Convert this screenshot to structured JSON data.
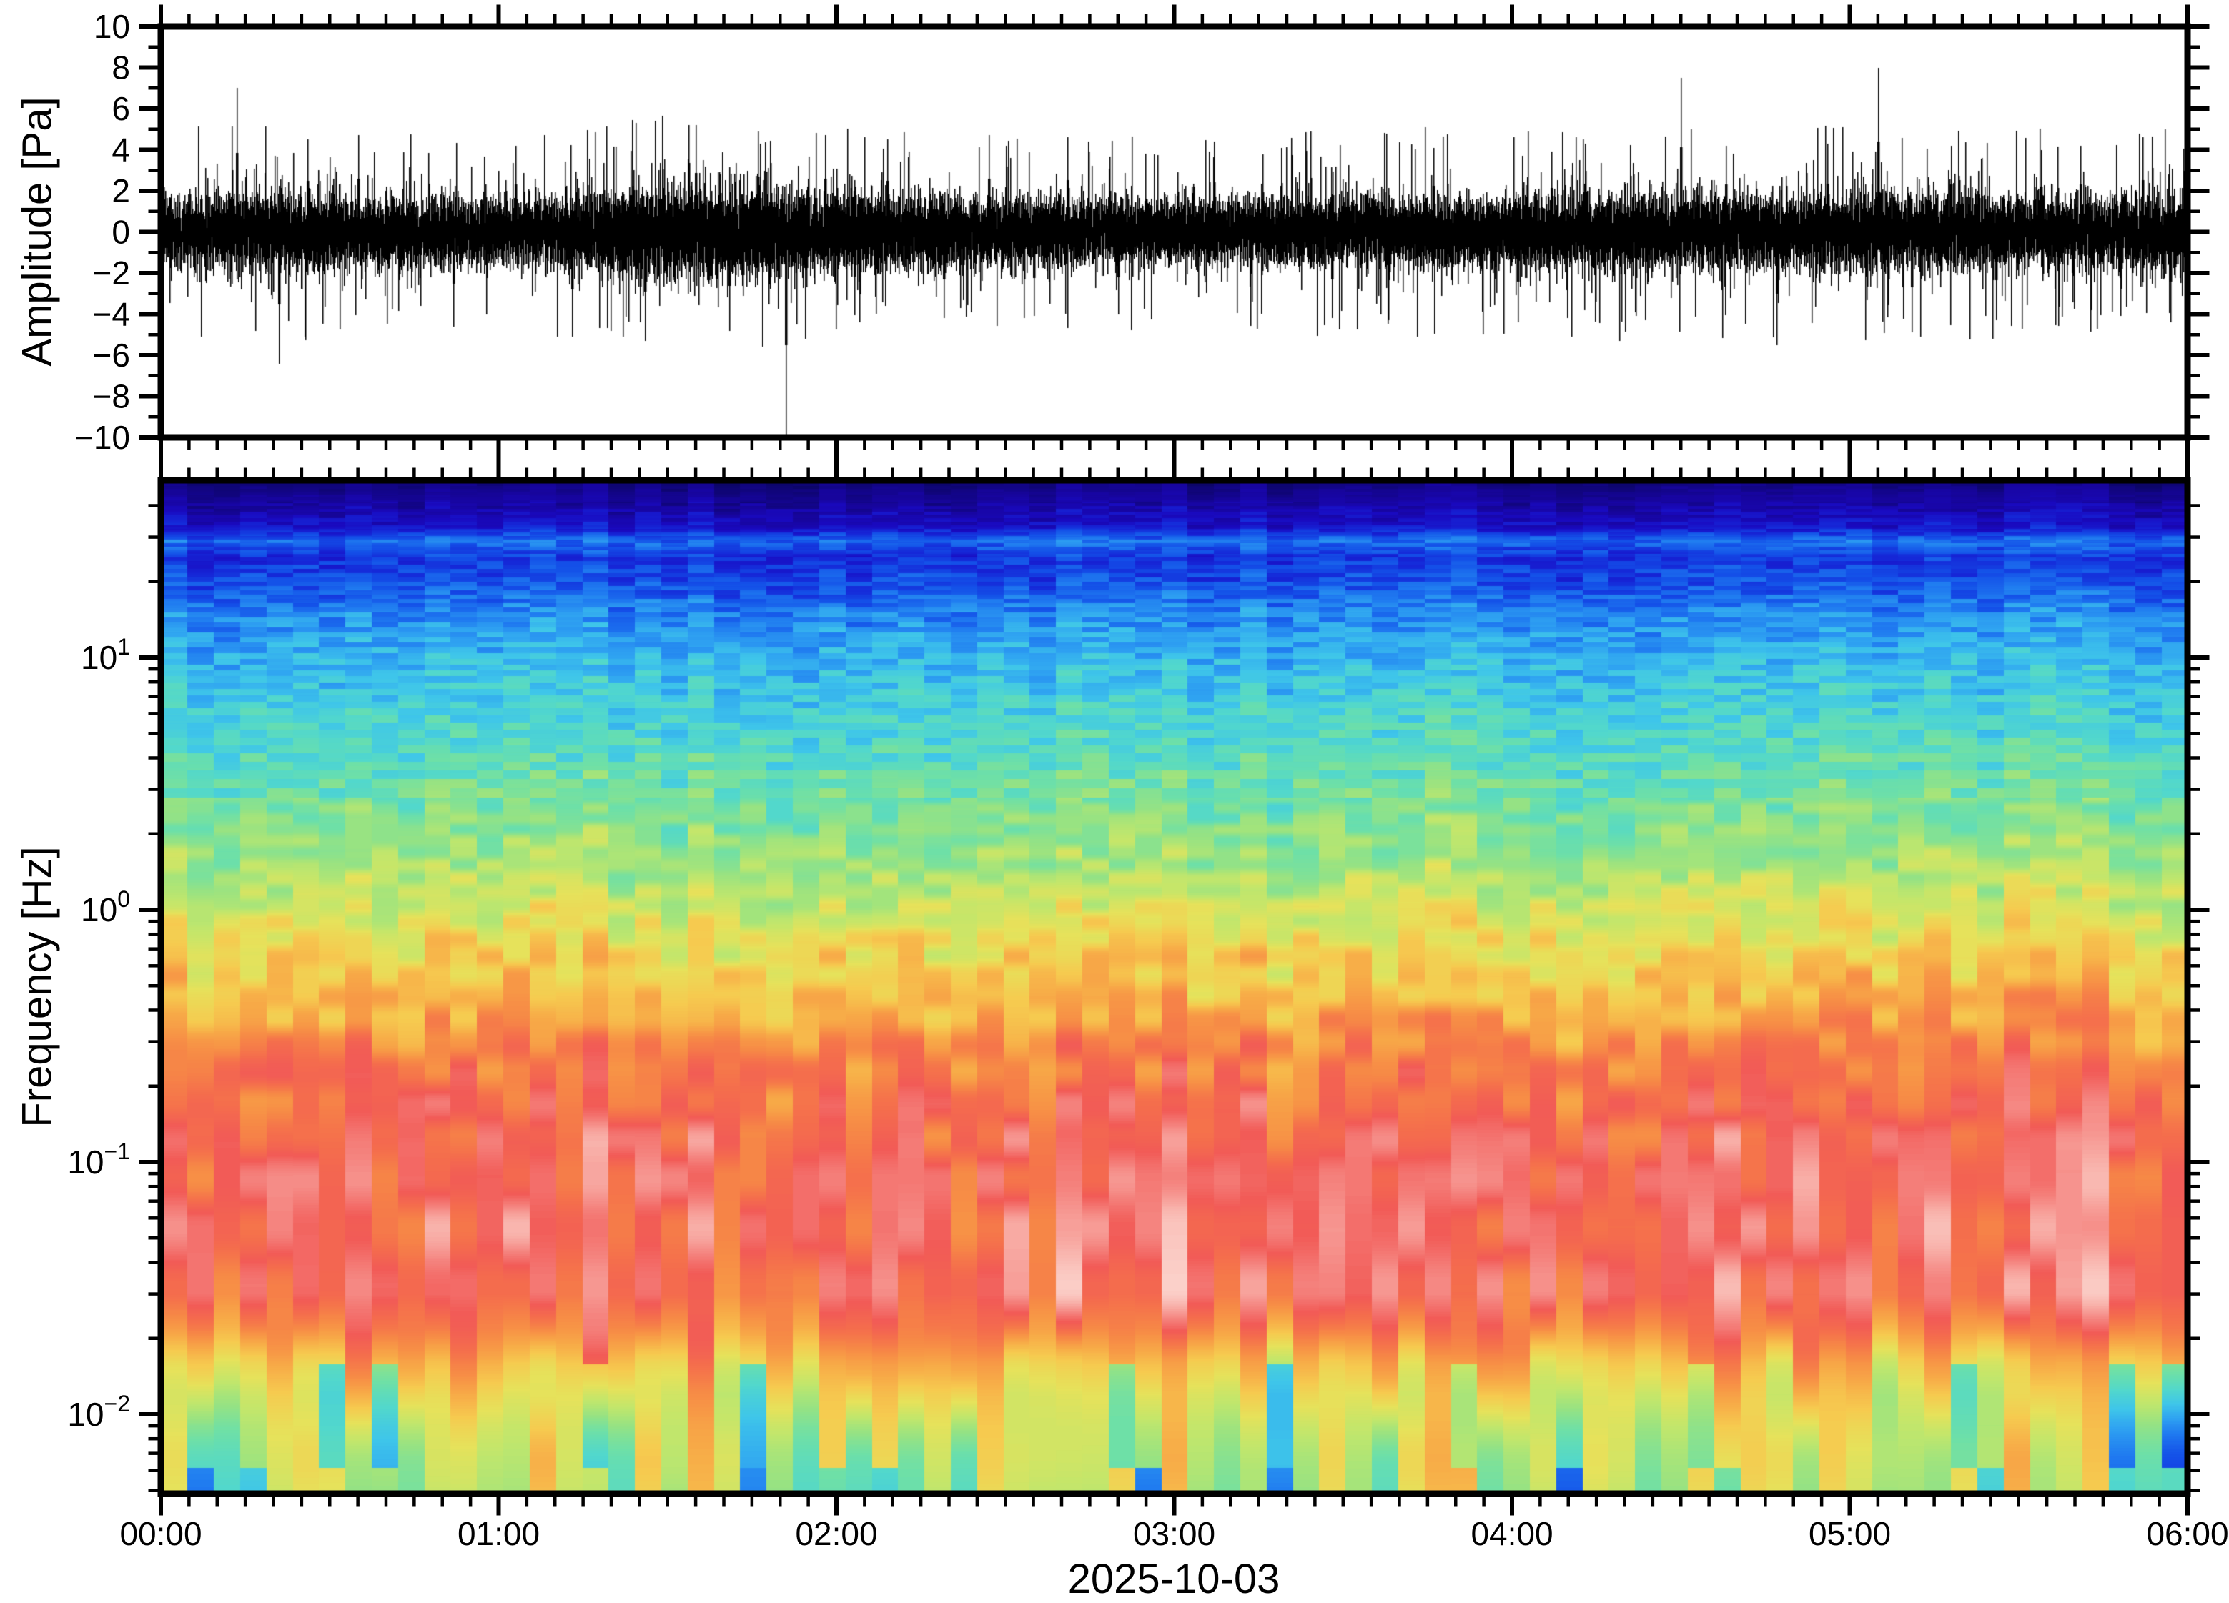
{
  "figure": {
    "background": "#ffffff",
    "ink": "#000000",
    "kind": "infrasound waveform and spectrogram"
  },
  "top_panel": {
    "ylabel": "Amplitude [Pa]",
    "ylim": [
      -10,
      10
    ],
    "major_tick_step": 2,
    "minor_tick_step": 1,
    "tick_labels": [
      "10",
      "8",
      "6",
      "4",
      "2",
      "0",
      "−2",
      "−4",
      "−6",
      "−8",
      "−10"
    ]
  },
  "bottom_panel": {
    "ylabel": "Frequency [Hz]",
    "yscale": "log",
    "ylim_hz": [
      0.005,
      50
    ],
    "decade_ticks": [
      {
        "base": "10",
        "exp": "1",
        "hz": 10
      },
      {
        "base": "10",
        "exp": "0",
        "hz": 1
      },
      {
        "base": "10",
        "exp": "−1",
        "hz": 0.1
      },
      {
        "base": "10",
        "exp": "−2",
        "hz": 0.01
      }
    ]
  },
  "x_axis": {
    "label": "2025-10-03",
    "start_label": "00:00",
    "end_label": "06:00",
    "major_ticks": [
      {
        "minutes": 0,
        "label": "00:00"
      },
      {
        "minutes": 60,
        "label": "01:00"
      },
      {
        "minutes": 120,
        "label": "02:00"
      },
      {
        "minutes": 180,
        "label": "03:00"
      },
      {
        "minutes": 240,
        "label": "04:00"
      },
      {
        "minutes": 300,
        "label": "05:00"
      },
      {
        "minutes": 360,
        "label": "06:00"
      }
    ],
    "minor_tick_minutes": 5,
    "span_minutes": 360
  },
  "chart_data": [
    {
      "type": "line",
      "name": "infrasound-waveform",
      "title": "",
      "xlabel": "2025-10-03",
      "ylabel": "Amplitude [Pa]",
      "units": "Pa",
      "x_span_minutes": 360,
      "ylim": [
        -10,
        10
      ],
      "color": "#000000",
      "noise": {
        "base_sigma_pa": 0.8,
        "samples_per_column": 12,
        "tail_probability": 0.11,
        "tail_amp_pa": [
          2.2,
          4.6
        ],
        "envelope_sigma_pa": [
          [
            0,
            0.82
          ],
          [
            15,
            0.95
          ],
          [
            35,
            0.9
          ],
          [
            55,
            0.8
          ],
          [
            70,
            0.88
          ],
          [
            85,
            1.05
          ],
          [
            95,
            1.18
          ],
          [
            105,
            1.12
          ],
          [
            115,
            0.97
          ],
          [
            130,
            0.9
          ],
          [
            150,
            0.83
          ],
          [
            175,
            0.8
          ],
          [
            200,
            0.79
          ],
          [
            225,
            0.83
          ],
          [
            250,
            0.86
          ],
          [
            270,
            0.92
          ],
          [
            290,
            0.86
          ],
          [
            310,
            0.92
          ],
          [
            330,
            0.84
          ],
          [
            345,
            0.86
          ],
          [
            360,
            0.92
          ]
        ]
      },
      "spikes_pa": [
        [
          13.5,
          7.0
        ],
        [
          21,
          -6.4
        ],
        [
          26,
          4.5
        ],
        [
          35,
          4.7
        ],
        [
          52,
          -4.6
        ],
        [
          63,
          4.2
        ],
        [
          73,
          -5.1
        ],
        [
          86,
          -5.3
        ],
        [
          95,
          5.2
        ],
        [
          101,
          -4.8
        ],
        [
          106,
          4.9
        ],
        [
          111,
          -10.0
        ],
        [
          118,
          4.7
        ],
        [
          124,
          -4.4
        ],
        [
          129,
          4.5
        ],
        [
          139,
          -4.2
        ],
        [
          147,
          4.7
        ],
        [
          155,
          -4.1
        ],
        [
          161,
          4.6
        ],
        [
          170,
          -4.0
        ],
        [
          187,
          4.4
        ],
        [
          199,
          4.1
        ],
        [
          208,
          -4.2
        ],
        [
          218,
          -4.3
        ],
        [
          226,
          4.1
        ],
        [
          241,
          -4.4
        ],
        [
          247,
          3.9
        ],
        [
          253,
          4.3
        ],
        [
          262,
          -4.1
        ],
        [
          270,
          7.5
        ],
        [
          278,
          4.2
        ],
        [
          287,
          -5.5
        ],
        [
          296,
          4.3
        ],
        [
          305,
          8.0
        ],
        [
          311,
          -4.9
        ],
        [
          318,
          4.2
        ],
        [
          326,
          -4.3
        ],
        [
          334,
          4.0
        ],
        [
          341,
          4.2
        ],
        [
          348,
          -4.1
        ],
        [
          352,
          4.6
        ],
        [
          357,
          -4.4
        ],
        [
          359.5,
          4.8
        ]
      ],
      "clip_pa": 10
    },
    {
      "type": "heatmap",
      "name": "spectrogram",
      "title": "",
      "xlabel": "2025-10-03",
      "ylabel": "Frequency [Hz]",
      "yscale": "log",
      "ylim_hz": [
        0.005,
        50
      ],
      "x_span_minutes": 360,
      "time_bins": 77,
      "legend": "none",
      "power_profile_hz_to_level": [
        [
          50,
          0.02
        ],
        [
          46,
          0.04
        ],
        [
          40,
          0.07
        ],
        [
          33,
          0.12
        ],
        [
          29,
          0.24
        ],
        [
          25,
          0.17
        ],
        [
          20,
          0.2
        ],
        [
          15,
          0.27
        ],
        [
          10,
          0.33
        ],
        [
          7,
          0.37
        ],
        [
          5,
          0.4
        ],
        [
          3,
          0.45
        ],
        [
          2,
          0.49
        ],
        [
          1.5,
          0.52
        ],
        [
          1,
          0.58
        ],
        [
          0.7,
          0.63
        ],
        [
          0.5,
          0.67
        ],
        [
          0.35,
          0.72
        ],
        [
          0.25,
          0.78
        ],
        [
          0.18,
          0.81
        ],
        [
          0.12,
          0.85
        ],
        [
          0.08,
          0.86
        ],
        [
          0.05,
          0.86
        ],
        [
          0.03,
          0.85
        ],
        [
          0.022,
          0.78
        ],
        [
          0.016,
          0.68
        ],
        [
          0.012,
          0.62
        ],
        [
          0.009,
          0.58
        ],
        [
          0.007,
          0.56
        ],
        [
          0.005,
          0.54
        ]
      ],
      "noise_level_hz": [
        [
          50,
          0.03
        ],
        [
          16,
          0.05
        ],
        [
          3,
          0.055
        ],
        [
          1,
          0.06
        ],
        [
          0.2,
          0.075
        ],
        [
          0.06,
          0.085
        ],
        [
          0.016,
          0.1
        ],
        [
          0.005,
          0.11
        ]
      ],
      "column_contrast_hz": [
        [
          50,
          0.5
        ],
        [
          10,
          0.5
        ],
        [
          1,
          0.7
        ],
        [
          0.1,
          0.9
        ],
        [
          0.016,
          1.2
        ],
        [
          0.005,
          1.3
        ]
      ],
      "colormap": [
        [
          0.0,
          "#0c0566"
        ],
        [
          0.05,
          "#17059c"
        ],
        [
          0.1,
          "#1a0ac0"
        ],
        [
          0.15,
          "#1627d8"
        ],
        [
          0.2,
          "#144fe8"
        ],
        [
          0.25,
          "#1f78f0"
        ],
        [
          0.3,
          "#2fa2f2"
        ],
        [
          0.35,
          "#3fc6ea"
        ],
        [
          0.4,
          "#52d8cc"
        ],
        [
          0.45,
          "#6ee0a8"
        ],
        [
          0.5,
          "#97e383"
        ],
        [
          0.55,
          "#c2e76c"
        ],
        [
          0.6,
          "#e6e25b"
        ],
        [
          0.65,
          "#f6cb50"
        ],
        [
          0.7,
          "#f8ab48"
        ],
        [
          0.75,
          "#f78d46"
        ],
        [
          0.8,
          "#f5704c"
        ],
        [
          0.85,
          "#f25b57"
        ],
        [
          0.9,
          "#f5837e"
        ],
        [
          0.95,
          "#f9b3ac"
        ],
        [
          1.0,
          "#fcd9d2"
        ]
      ]
    }
  ]
}
